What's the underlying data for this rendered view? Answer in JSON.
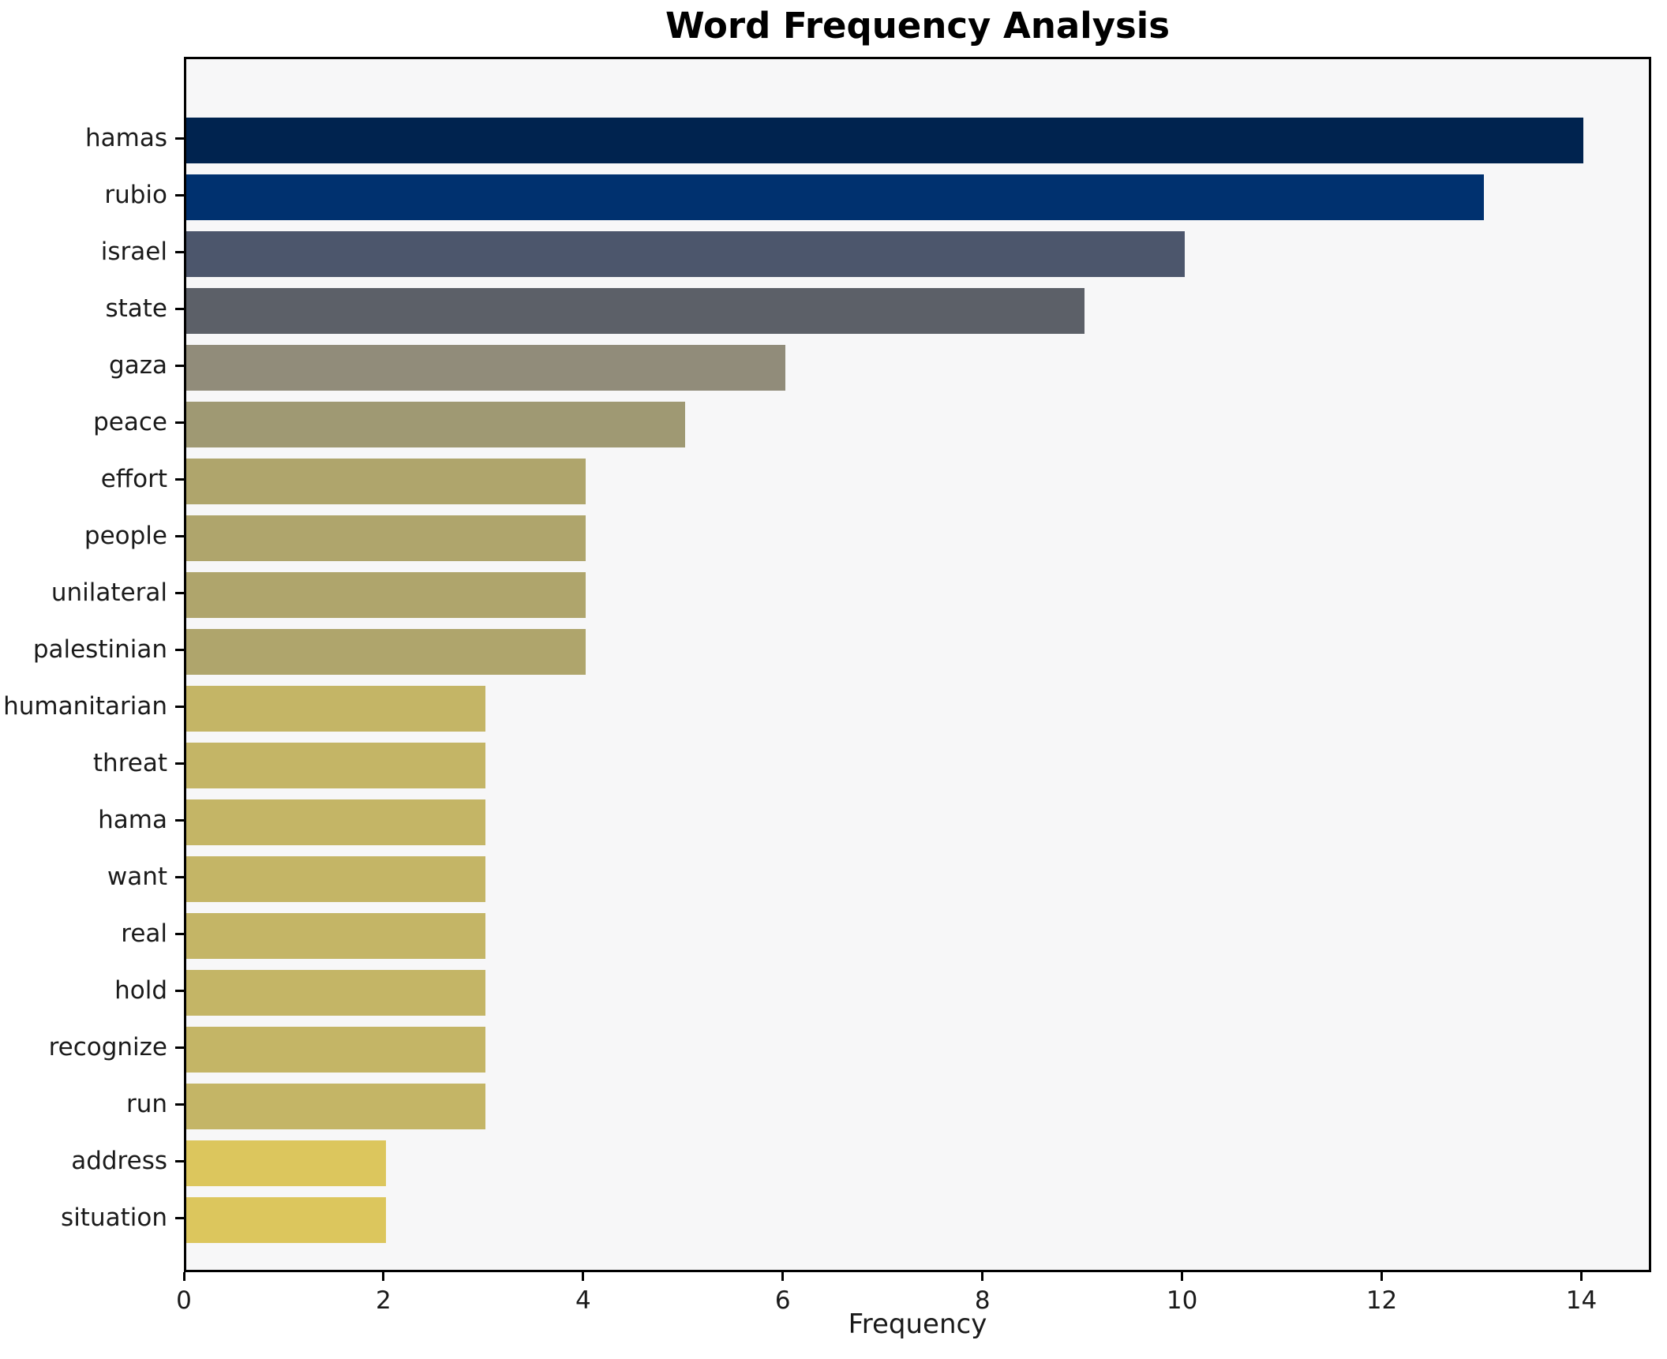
{
  "chart_data": {
    "type": "bar",
    "orientation": "horizontal",
    "title": "Word Frequency Analysis",
    "xlabel": "Frequency",
    "ylabel": "",
    "categories": [
      "hamas",
      "rubio",
      "israel",
      "state",
      "gaza",
      "peace",
      "effort",
      "people",
      "unilateral",
      "palestinian",
      "humanitarian",
      "threat",
      "hama",
      "want",
      "real",
      "hold",
      "recognize",
      "run",
      "address",
      "situation"
    ],
    "values": [
      14,
      13,
      10,
      9,
      6,
      5,
      4,
      4,
      4,
      4,
      3,
      3,
      3,
      3,
      3,
      3,
      3,
      3,
      2,
      2
    ],
    "bar_colors": [
      "#00234f",
      "#00316f",
      "#4c566c",
      "#5c6068",
      "#918c7a",
      "#9f9973",
      "#afa56c",
      "#afa56c",
      "#afa56c",
      "#afa56c",
      "#c4b566",
      "#c4b566",
      "#c4b566",
      "#c4b566",
      "#c4b566",
      "#c4b566",
      "#c4b566",
      "#c4b566",
      "#dcc65d",
      "#dcc65d"
    ],
    "xlim": [
      0,
      14.7
    ],
    "xticks": [
      0,
      2,
      4,
      6,
      8,
      10,
      12,
      14
    ],
    "grid": false,
    "legend": null,
    "plot_background": "#f7f7f8",
    "figure_background": "#ffffff",
    "spine_color": "#000000",
    "tick_text_color": "#1a1a1a"
  }
}
